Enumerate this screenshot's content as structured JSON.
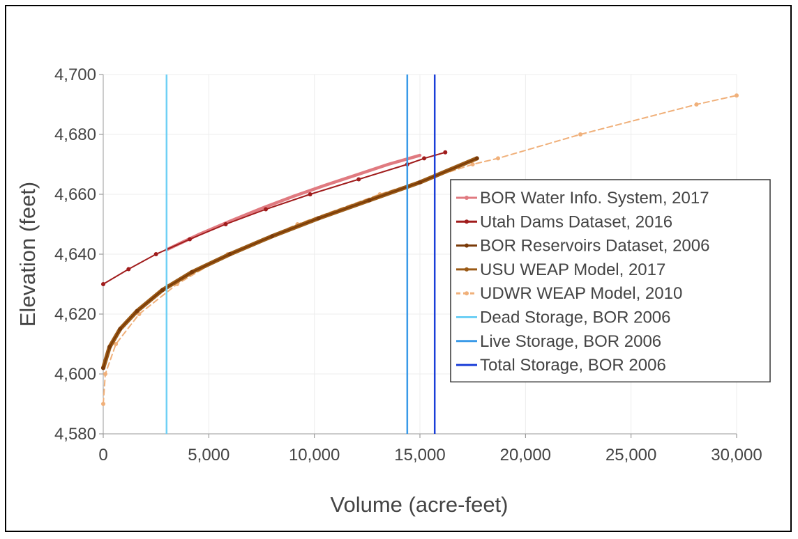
{
  "chart_data": {
    "type": "line",
    "xlabel": "Volume (acre-feet)",
    "ylabel": "Elevation (feet)",
    "xlim": [
      0,
      30000
    ],
    "ylim": [
      4580,
      4700
    ],
    "x_ticks": [
      "0",
      "5,000",
      "10,000",
      "15,000",
      "20,000",
      "25,000",
      "30,000"
    ],
    "y_ticks": [
      "4,580",
      "4,600",
      "4,620",
      "4,640",
      "4,660",
      "4,680",
      "4,700"
    ],
    "grid": true,
    "legend_position": "right",
    "series": [
      {
        "name": "BOR Water Info. System, 2017",
        "color": "#e07a80",
        "style": "thick-solid",
        "x": [
          3000,
          4500,
          6000,
          7500,
          9000,
          10500,
          12000,
          13500,
          15000
        ],
        "y": [
          4641.5,
          4646.5,
          4651,
          4655.3,
          4659.3,
          4663,
          4666.5,
          4670,
          4673
        ]
      },
      {
        "name": "Utah Dams Dataset, 2016",
        "color": "#a01c1c",
        "style": "solid-markers",
        "x": [
          0,
          1200,
          2500,
          4100,
          5800,
          7700,
          9800,
          12100,
          14400,
          15200,
          16200
        ],
        "y": [
          4630,
          4635,
          4640,
          4645,
          4650,
          4655,
          4660,
          4665,
          4670,
          4672,
          4674
        ]
      },
      {
        "name": "BOR Reservoirs Dataset, 2006",
        "color": "#7a3a08",
        "style": "solid-markers",
        "x": [
          0,
          300,
          800,
          1600,
          2800,
          4200,
          6000,
          8000,
          10200,
          12600,
          15000,
          17700
        ],
        "y": [
          4602,
          4609,
          4615,
          4621,
          4628,
          4634,
          4640,
          4646,
          4652,
          4658,
          4664,
          4672
        ]
      },
      {
        "name": "USU WEAP Model, 2017",
        "color": "#9a5a16",
        "style": "thick-solid",
        "x": [
          0,
          300,
          800,
          1600,
          2800,
          4200,
          6000,
          8000,
          10200,
          12600,
          15000,
          17700
        ],
        "y": [
          4602,
          4609,
          4615,
          4621,
          4628,
          4634,
          4640,
          4646,
          4652,
          4658,
          4664,
          4672
        ]
      },
      {
        "name": "UDWR WEAP Model, 2010",
        "color": "#f0b07a",
        "style": "dashed-markers",
        "x": [
          0,
          100,
          600,
          1700,
          3500,
          5900,
          9200,
          13100,
          17500,
          18700,
          22600,
          28100,
          30000
        ],
        "y": [
          4590,
          4600,
          4610,
          4620,
          4630,
          4640,
          4650,
          4660,
          4670,
          4672,
          4680,
          4690,
          4693
        ]
      },
      {
        "name": "Dead Storage, BOR 2006",
        "color": "#6fd0f5",
        "style": "vertical",
        "value": 3000
      },
      {
        "name": "Live Storage, BOR 2006",
        "color": "#3a9ae8",
        "style": "vertical",
        "value": 14400
      },
      {
        "name": "Total Storage, BOR 2006",
        "color": "#1a3ed8",
        "style": "vertical",
        "value": 15700
      }
    ]
  }
}
